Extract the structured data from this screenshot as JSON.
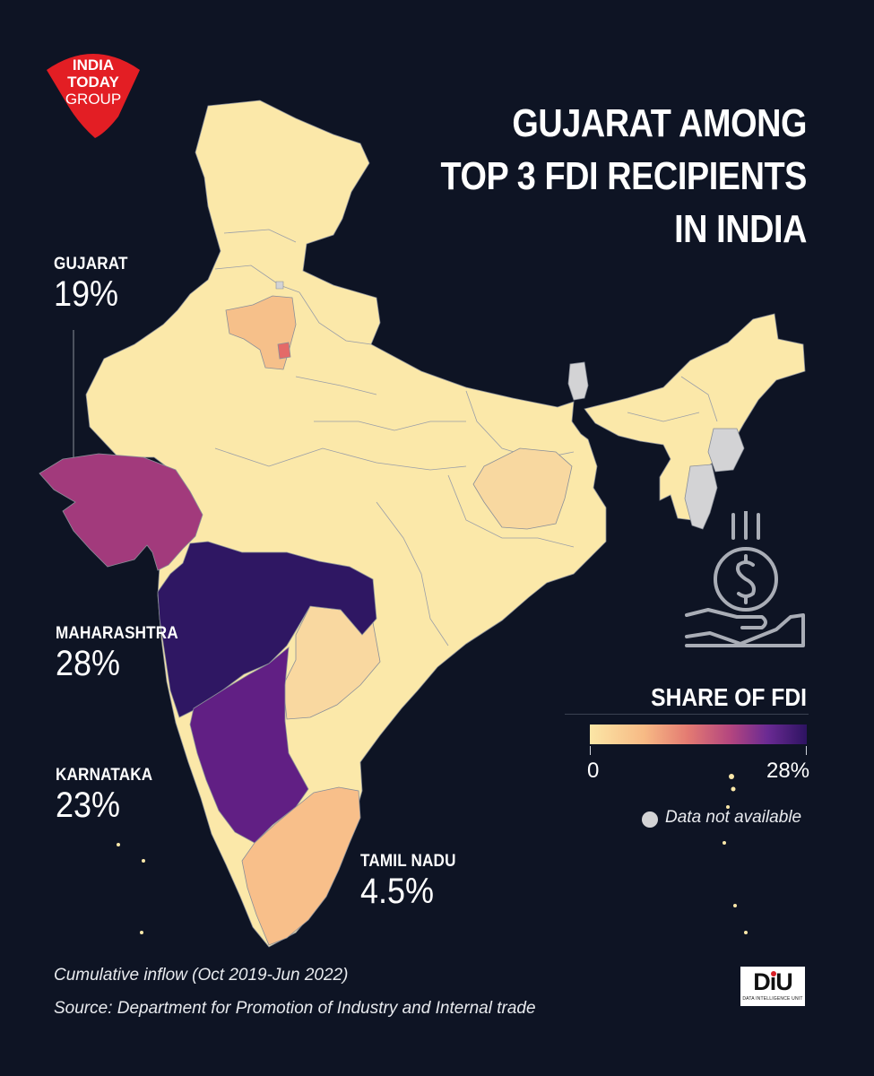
{
  "brand": {
    "logo_text": [
      "INDIA",
      "TODAY",
      "GROUP"
    ],
    "logo_color": "#e31e24"
  },
  "title": [
    "GUJARAT AMONG",
    "TOP 3 FDI RECIPIENTS",
    "IN INDIA"
  ],
  "callouts": [
    {
      "state": "GUJARAT",
      "value": "19%"
    },
    {
      "state": "MAHARASHTRA",
      "value": "28%"
    },
    {
      "state": "KARNATAKA",
      "value": "23%"
    },
    {
      "state": "TAMIL NADU",
      "value": "4.5%"
    }
  ],
  "legend": {
    "title": "SHARE OF FDI",
    "min_label": "0",
    "max_label": "28%",
    "min": 0,
    "max": 28,
    "colors": [
      "#fbe6a6",
      "#f7ba85",
      "#e47b72",
      "#b3457f",
      "#6a2a93",
      "#2d1361"
    ],
    "na_label": "Data not available",
    "na_color": "#d3d3d5"
  },
  "regions": [
    {
      "name": "Gujarat",
      "share": 19,
      "color": "#a23a7c"
    },
    {
      "name": "Maharashtra",
      "share": 28,
      "color": "#2f1763"
    },
    {
      "name": "Karnataka",
      "share": 23,
      "color": "#611f84"
    },
    {
      "name": "Tamil Nadu",
      "share": 4.5,
      "color": "#f8bf8a"
    },
    {
      "name": "Delhi",
      "color": "#e46a68"
    },
    {
      "name": "Haryana",
      "color": "#f6c08a"
    },
    {
      "name": "Telangana",
      "color": "#f9d8a0"
    },
    {
      "name": "Jharkhand",
      "color": "#f8d8a0"
    },
    {
      "name": "Sikkim",
      "color": "#d3d3d5"
    },
    {
      "name": "Manipur",
      "color": "#d3d3d5"
    },
    {
      "name": "Mizoram",
      "color": "#d3d3d5"
    }
  ],
  "notes": {
    "period": "Cumulative inflow (Oct 2019-Jun 2022)",
    "source": "Source: Department for Promotion of Industry and Internal trade"
  },
  "footer_logo": {
    "text": "DiU",
    "subtext": "DATA INTELLIGENCE UNIT"
  }
}
